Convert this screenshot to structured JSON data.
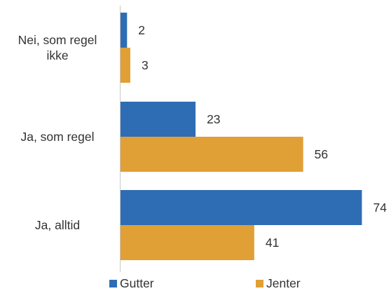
{
  "chart_data": {
    "type": "bar",
    "orientation": "horizontal",
    "categories": [
      [
        "Nei, som regel",
        "ikke"
      ],
      [
        "Ja, som regel"
      ],
      [
        "Ja, alltid"
      ]
    ],
    "series": [
      {
        "name": "Gutter",
        "color": "#2E6DB4",
        "values": [
          2,
          23,
          74
        ]
      },
      {
        "name": "Jenter",
        "color": "#E0A035",
        "values": [
          3,
          56,
          41
        ]
      }
    ],
    "xlim": [
      0,
      74
    ],
    "grid": false,
    "legend": "bottom",
    "axis_color": "#c8c8c8"
  }
}
